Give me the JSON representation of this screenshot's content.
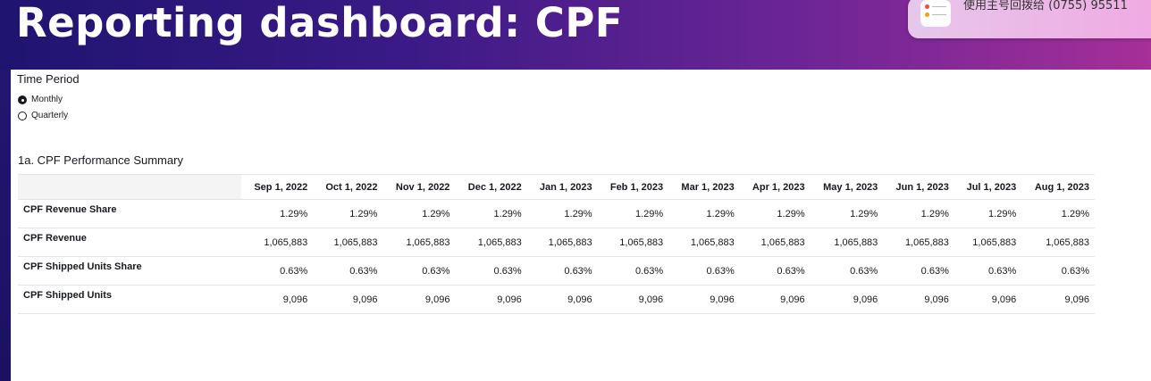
{
  "header": {
    "title": "Reporting dashboard: CPF"
  },
  "notification": {
    "text": "使用主号回拨给 (0755) 95511",
    "icon": "reminders-icon"
  },
  "filters": {
    "time_period_label": "Time Period",
    "options": [
      {
        "label": "Monthly",
        "selected": true
      },
      {
        "label": "Quarterly",
        "selected": false
      }
    ]
  },
  "summary": {
    "title": "1a. CPF Performance Summary",
    "columns": [
      "Sep 1, 2022",
      "Oct 1, 2022",
      "Nov 1, 2022",
      "Dec 1, 2022",
      "Jan 1, 2023",
      "Feb 1, 2023",
      "Mar 1, 2023",
      "Apr 1, 2023",
      "May 1, 2023",
      "Jun 1, 2023",
      "Jul 1, 2023",
      "Aug 1, 2023"
    ],
    "rows": [
      {
        "label": "CPF Revenue Share",
        "values": [
          "1.29%",
          "1.29%",
          "1.29%",
          "1.29%",
          "1.29%",
          "1.29%",
          "1.29%",
          "1.29%",
          "1.29%",
          "1.29%",
          "1.29%",
          "1.29%"
        ]
      },
      {
        "label": "CPF Revenue",
        "values": [
          "1,065,883",
          "1,065,883",
          "1,065,883",
          "1,065,883",
          "1,065,883",
          "1,065,883",
          "1,065,883",
          "1,065,883",
          "1,065,883",
          "1,065,883",
          "1,065,883",
          "1,065,883"
        ]
      },
      {
        "label": "CPF Shipped Units Share",
        "values": [
          "0.63%",
          "0.63%",
          "0.63%",
          "0.63%",
          "0.63%",
          "0.63%",
          "0.63%",
          "0.63%",
          "0.63%",
          "0.63%",
          "0.63%",
          "0.63%"
        ]
      },
      {
        "label": "CPF Shipped Units",
        "values": [
          "9,096",
          "9,096",
          "9,096",
          "9,096",
          "9,096",
          "9,096",
          "9,096",
          "9,096",
          "9,096",
          "9,096",
          "9,096",
          "9,096"
        ]
      }
    ]
  }
}
